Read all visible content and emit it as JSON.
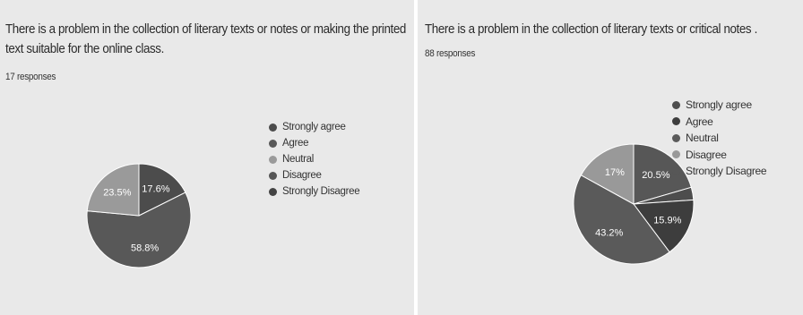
{
  "chart_data": [
    {
      "type": "pie",
      "title": "There is a problem in the collection of literary texts or notes or making the printed text suitable for the online class.",
      "subtitle": "17 responses",
      "categories": [
        "Strongly agree",
        "Agree",
        "Neutral",
        "Disagree",
        "Strongly Disagree"
      ],
      "values": [
        17.6,
        58.8,
        23.5,
        0,
        0
      ],
      "labels": [
        "17.6%",
        "58.8%",
        "23.5%",
        "",
        ""
      ],
      "colors": [
        "#4c4c4c",
        "#585858",
        "#9a9a9a",
        "#555555",
        "#444444"
      ],
      "legend": "right"
    },
    {
      "type": "pie",
      "title": "There is a problem in the collection of literary texts or critical notes .",
      "subtitle": "88 responses",
      "categories": [
        "Strongly agree",
        "Agree",
        "Neutral",
        "Disagree",
        "Strongly Disagree"
      ],
      "values": [
        3.4,
        15.9,
        43.2,
        17,
        20.5
      ],
      "render_order": [
        4,
        0,
        1,
        2,
        3
      ],
      "labels": [
        "",
        "15.9%",
        "43.2%",
        "17%",
        "20.5%"
      ],
      "colors": [
        "#4d4d4d",
        "#3d3d3d",
        "#5a5a5a",
        "#999999",
        "#575757"
      ],
      "legend": "right"
    }
  ]
}
